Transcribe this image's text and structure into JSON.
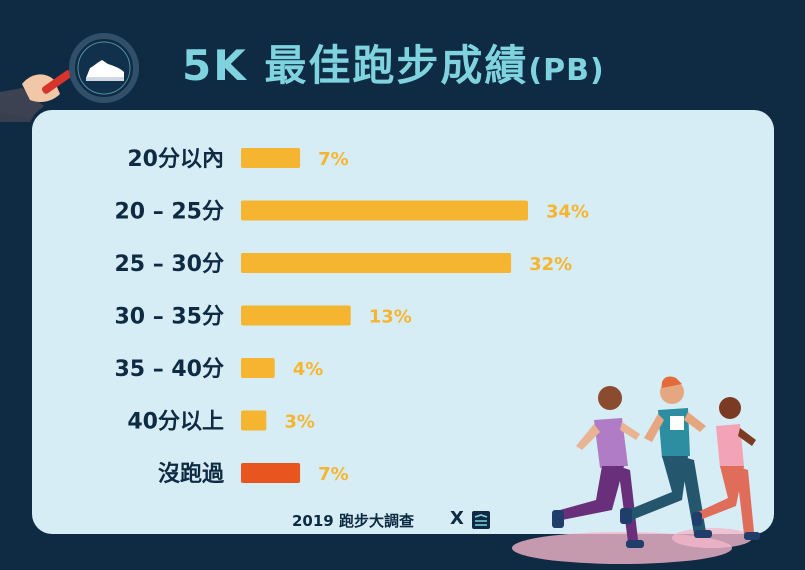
{
  "title": {
    "main": "5K 最佳跑步成績",
    "suffix": "(PB)"
  },
  "footer": {
    "text": "2019 跑步大調查",
    "x": "X"
  },
  "icons": {
    "header": "magnifier-shoe-icon",
    "footer_logo": "running-notes-logo",
    "illustration": "runners-illustration"
  },
  "colors": {
    "background": "#0f2a43",
    "panel": "#d7edf6",
    "title": "#7fd3df",
    "bar": "#f6b531",
    "bar_highlight": "#e8551e",
    "label": "#0f2a43"
  },
  "chart_data": {
    "type": "bar",
    "orientation": "horizontal",
    "title": "5K 最佳跑步成績(PB)",
    "categories": [
      "20分以內",
      "20 – 25分",
      "25 – 30分",
      "30 – 35分",
      "35 – 40分",
      "40分以上",
      "沒跑過"
    ],
    "values": [
      7,
      34,
      32,
      13,
      4,
      3,
      7
    ],
    "value_labels": [
      "7%",
      "34%",
      "32%",
      "13%",
      "4%",
      "3%",
      "7%"
    ],
    "highlight_index": 6,
    "unit": "%",
    "xlim": [
      0,
      34
    ],
    "grid": false,
    "legend": "none"
  }
}
